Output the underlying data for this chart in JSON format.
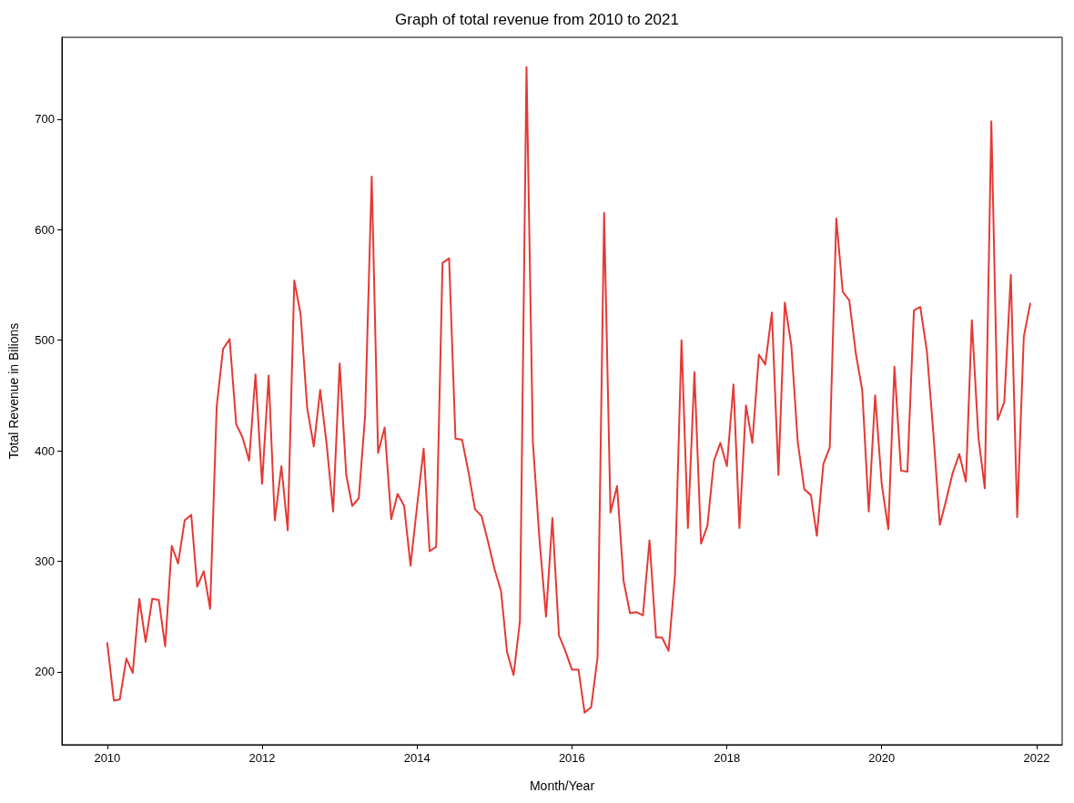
{
  "chart_data": {
    "type": "line",
    "title": "Graph of total revenue from 2010 to 2021",
    "xlabel": "Month/Year",
    "ylabel": "Total Revenue in Bilions",
    "x": [
      "2010-01",
      "2010-02",
      "2010-03",
      "2010-04",
      "2010-05",
      "2010-06",
      "2010-07",
      "2010-08",
      "2010-09",
      "2010-10",
      "2010-11",
      "2010-12",
      "2011-01",
      "2011-02",
      "2011-03",
      "2011-04",
      "2011-05",
      "2011-06",
      "2011-07",
      "2011-08",
      "2011-09",
      "2011-10",
      "2011-11",
      "2011-12",
      "2012-01",
      "2012-02",
      "2012-03",
      "2012-04",
      "2012-05",
      "2012-06",
      "2012-07",
      "2012-08",
      "2012-09",
      "2012-10",
      "2012-11",
      "2012-12",
      "2013-01",
      "2013-02",
      "2013-03",
      "2013-04",
      "2013-05",
      "2013-06",
      "2013-07",
      "2013-08",
      "2013-09",
      "2013-10",
      "2013-11",
      "2013-12",
      "2014-01",
      "2014-02",
      "2014-03",
      "2014-04",
      "2014-05",
      "2014-06",
      "2014-07",
      "2014-08",
      "2014-09",
      "2014-10",
      "2014-11",
      "2014-12",
      "2015-01",
      "2015-02",
      "2015-03",
      "2015-04",
      "2015-05",
      "2015-06",
      "2015-07",
      "2015-08",
      "2015-09",
      "2015-10",
      "2015-11",
      "2015-12",
      "2016-01",
      "2016-02",
      "2016-03",
      "2016-04",
      "2016-05",
      "2016-06",
      "2016-07",
      "2016-08",
      "2016-09",
      "2016-10",
      "2016-11",
      "2016-12",
      "2017-01",
      "2017-02",
      "2017-03",
      "2017-04",
      "2017-05",
      "2017-06",
      "2017-07",
      "2017-08",
      "2017-09",
      "2017-10",
      "2017-11",
      "2017-12",
      "2018-01",
      "2018-02",
      "2018-03",
      "2018-04",
      "2018-05",
      "2018-06",
      "2018-07",
      "2018-08",
      "2018-09",
      "2018-10",
      "2018-11",
      "2018-12",
      "2019-01",
      "2019-02",
      "2019-03",
      "2019-04",
      "2019-05",
      "2019-06",
      "2019-07",
      "2019-08",
      "2019-09",
      "2019-10",
      "2019-11",
      "2019-12",
      "2020-01",
      "2020-02",
      "2020-03",
      "2020-04",
      "2020-05",
      "2020-06",
      "2020-07",
      "2020-08",
      "2020-09",
      "2020-10",
      "2020-11",
      "2020-12",
      "2021-01",
      "2021-02",
      "2021-03",
      "2021-04",
      "2021-05",
      "2021-06",
      "2021-07",
      "2021-08",
      "2021-09",
      "2021-10",
      "2021-11",
      "2021-12"
    ],
    "series": [
      {
        "color": "#e53935",
        "values": [
          226,
          174,
          175,
          212,
          199,
          266,
          227,
          266,
          265,
          223,
          314,
          298,
          337,
          342,
          277,
          291,
          257,
          440,
          492,
          501,
          424,
          412,
          391,
          469,
          370,
          468,
          337,
          386,
          328,
          554,
          523,
          438,
          404,
          455,
          405,
          345,
          479,
          378,
          350,
          357,
          432,
          648,
          398,
          421,
          338,
          361,
          350,
          296,
          350,
          402,
          309,
          313,
          570,
          574,
          411,
          410,
          380,
          347,
          341,
          318,
          293,
          273,
          218,
          197,
          246,
          747,
          408,
          320,
          250,
          339,
          233,
          219,
          202,
          202,
          163,
          168,
          213,
          615,
          344,
          368,
          282,
          253,
          254,
          251,
          319,
          231,
          231,
          219,
          287,
          500,
          330,
          471,
          316,
          332,
          391,
          407,
          386,
          460,
          330,
          441,
          407,
          487,
          478,
          525,
          378,
          534,
          495,
          408,
          365,
          360,
          323,
          388,
          403,
          610,
          544,
          536,
          488,
          455,
          345,
          450,
          370,
          329,
          476,
          382,
          381,
          527,
          530,
          490,
          415,
          333,
          356,
          380,
          397,
          372,
          518,
          412,
          366,
          698,
          428,
          444,
          559,
          340,
          503,
          533
        ]
      }
    ],
    "xlim": [
      "2009-06",
      "2022-05"
    ],
    "xticks": [
      "2010",
      "2012",
      "2014",
      "2016",
      "2018",
      "2020",
      "2022"
    ],
    "ylim": [
      134,
      774
    ],
    "yticks": [
      200,
      300,
      400,
      500,
      600,
      700
    ],
    "grid": false,
    "marker": "none",
    "line_style": "solid"
  }
}
